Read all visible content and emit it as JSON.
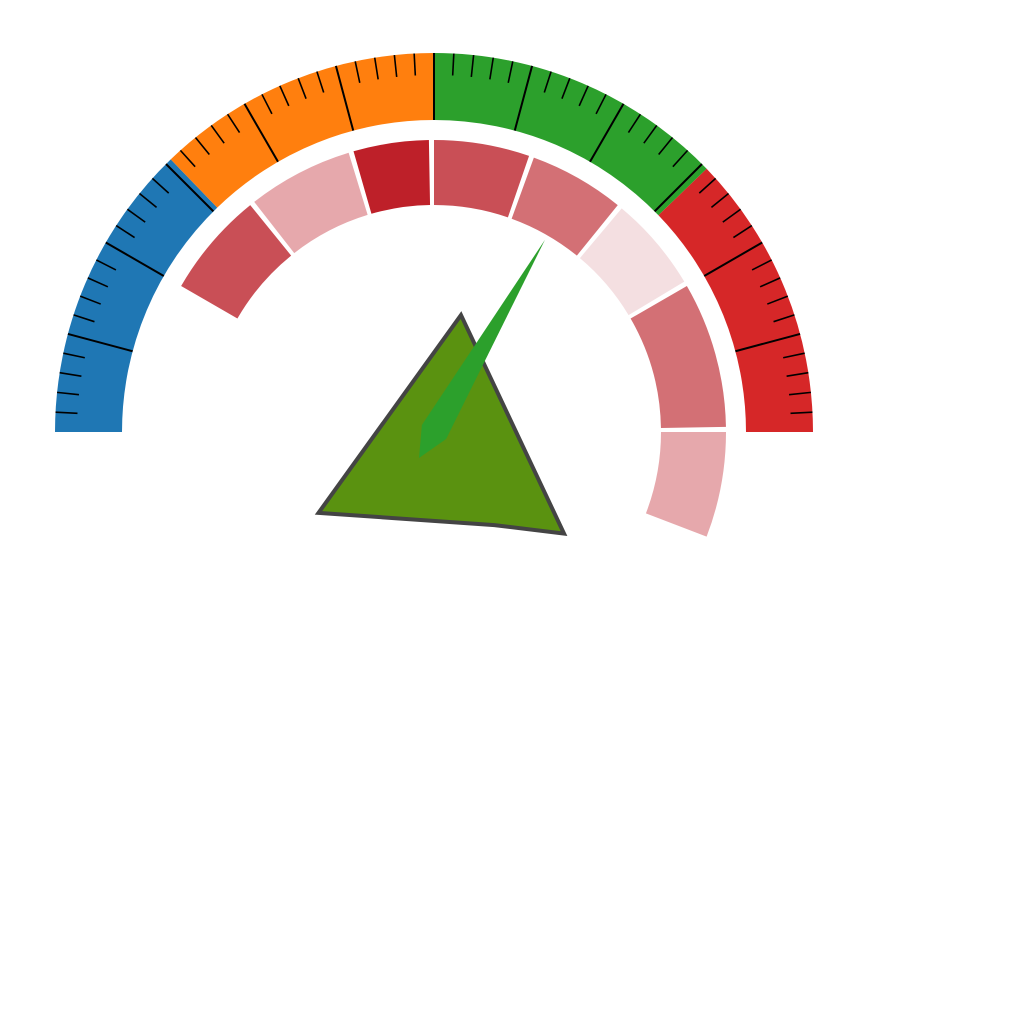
{
  "chart_data": {
    "type": "gauge",
    "title": "",
    "scale": {
      "min": 0,
      "max": 180,
      "major_tick_step": 15,
      "minor_tick_step": 3
    },
    "outer_bands": [
      {
        "from": 0,
        "to": 46,
        "color": "#1f77b4"
      },
      {
        "from": 46,
        "to": 90,
        "color": "#ff7f0e"
      },
      {
        "from": 90,
        "to": 136,
        "color": "#2ca02c"
      },
      {
        "from": 136,
        "to": 180,
        "color": "#d62728"
      }
    ],
    "inner_segments": [
      {
        "from": 30,
        "to": 51,
        "color": "#c94f56"
      },
      {
        "from": 52,
        "to": 73,
        "color": "#e6a8ac"
      },
      {
        "from": 74,
        "to": 89,
        "color": "#be2029"
      },
      {
        "from": 90,
        "to": 109,
        "color": "#c94f56"
      },
      {
        "from": 110,
        "to": 129,
        "color": "#d37075"
      },
      {
        "from": 130,
        "to": 149,
        "color": "#f4dfe1"
      },
      {
        "from": 150,
        "to": 179,
        "color": "#d37075"
      },
      {
        "from": 180,
        "to": 201,
        "color": "#e6a8ac"
      }
    ],
    "needle": {
      "value": 120,
      "color": "#2ca02c"
    },
    "polygon": {
      "color": "#5a9210",
      "stroke": "#444444",
      "vertices": [
        {
          "angle": 103,
          "radius": 0.4
        },
        {
          "angle": 218,
          "radius": 0.55
        },
        {
          "angle": 237,
          "radius": 0.37
        },
        {
          "angle": 325,
          "radius": 0.47
        }
      ]
    }
  }
}
